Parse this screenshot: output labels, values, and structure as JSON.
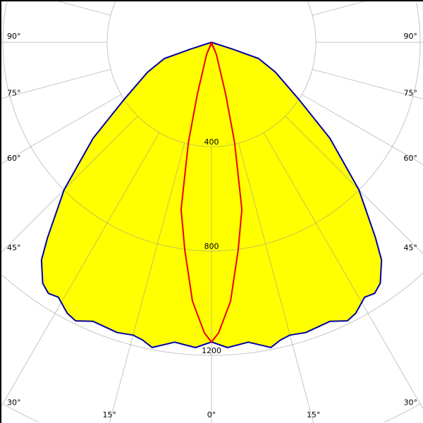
{
  "chart_data": {
    "type": "polar",
    "title": "",
    "radial_ticks": [
      400,
      800,
      1200,
      1600,
      2000
    ],
    "radial_tick_labels": [
      "400",
      "800",
      "1200"
    ],
    "angle_labels_left": [
      "90°",
      "75°",
      "60°",
      "45°",
      "30°",
      "15°"
    ],
    "angle_label_zero": "0°",
    "angle_labels_right": [
      "15°",
      "30°",
      "45°",
      "60°",
      "75°",
      "90°"
    ],
    "angle_step_deg": 15,
    "grid": true,
    "symmetric": true,
    "series": [
      {
        "color": "#0000a8",
        "fill": "#ffff00",
        "points": [
          [
            0,
            1149
          ],
          [
            3,
            1172
          ],
          [
            7,
            1158
          ],
          [
            11,
            1192
          ],
          [
            13,
            1172
          ],
          [
            15,
            1162
          ],
          [
            18,
            1170
          ],
          [
            23,
            1162
          ],
          [
            26,
            1188
          ],
          [
            28,
            1177
          ],
          [
            31,
            1140
          ],
          [
            33,
            1148
          ],
          [
            35,
            1128
          ],
          [
            38,
            1059
          ],
          [
            40,
            978
          ],
          [
            45,
            799
          ],
          [
            51,
            584
          ],
          [
            57,
            396
          ],
          [
            65,
            270
          ],
          [
            71,
            191
          ],
          [
            72,
            85
          ],
          [
            76,
            0
          ]
        ]
      },
      {
        "color": "#ee0000",
        "fill": "none",
        "points": [
          [
            0,
            1149
          ],
          [
            1.4,
            1114
          ],
          [
            4.2,
            995
          ],
          [
            7.3,
            804
          ],
          [
            10.3,
            651
          ],
          [
            13,
            393
          ],
          [
            15.3,
            205
          ],
          [
            22,
            50
          ],
          [
            25,
            0
          ]
        ]
      }
    ]
  }
}
